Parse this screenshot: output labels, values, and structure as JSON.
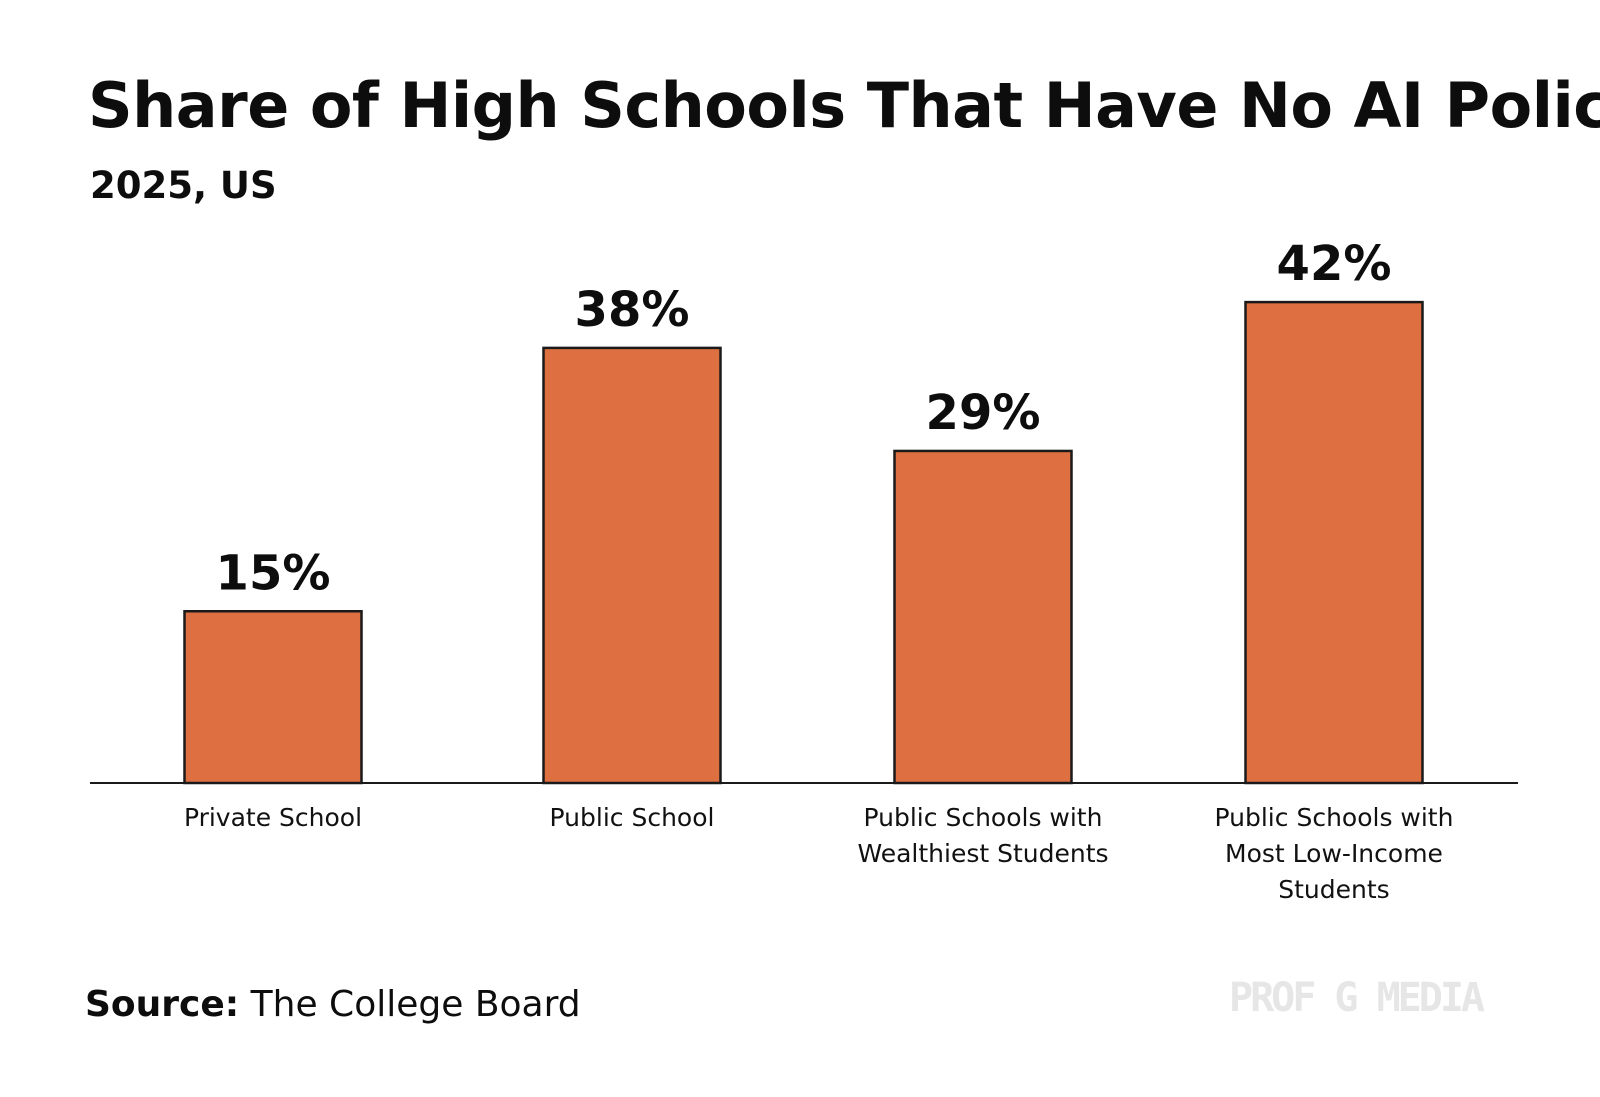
{
  "chart_data": {
    "type": "bar",
    "title": "Share of High Schools That Have No AI Policy",
    "subtitle": "2025, US",
    "categories": [
      [
        "Private School"
      ],
      [
        "Public School"
      ],
      [
        "Public Schools with",
        "Wealthiest Students"
      ],
      [
        "Public Schools with",
        "Most Low-Income",
        "Students"
      ]
    ],
    "values": [
      15,
      38,
      29,
      42
    ],
    "value_labels": [
      "15%",
      "38%",
      "29%",
      "42%"
    ],
    "unit": "%",
    "ylim": [
      0,
      50
    ],
    "grid": false,
    "legend": "none",
    "bar_color": "#de6f41",
    "bar_outline_color": "#1a1a1a"
  },
  "source": {
    "label": "Source:",
    "text": "The College Board"
  },
  "watermark": "PROF G MEDIA"
}
